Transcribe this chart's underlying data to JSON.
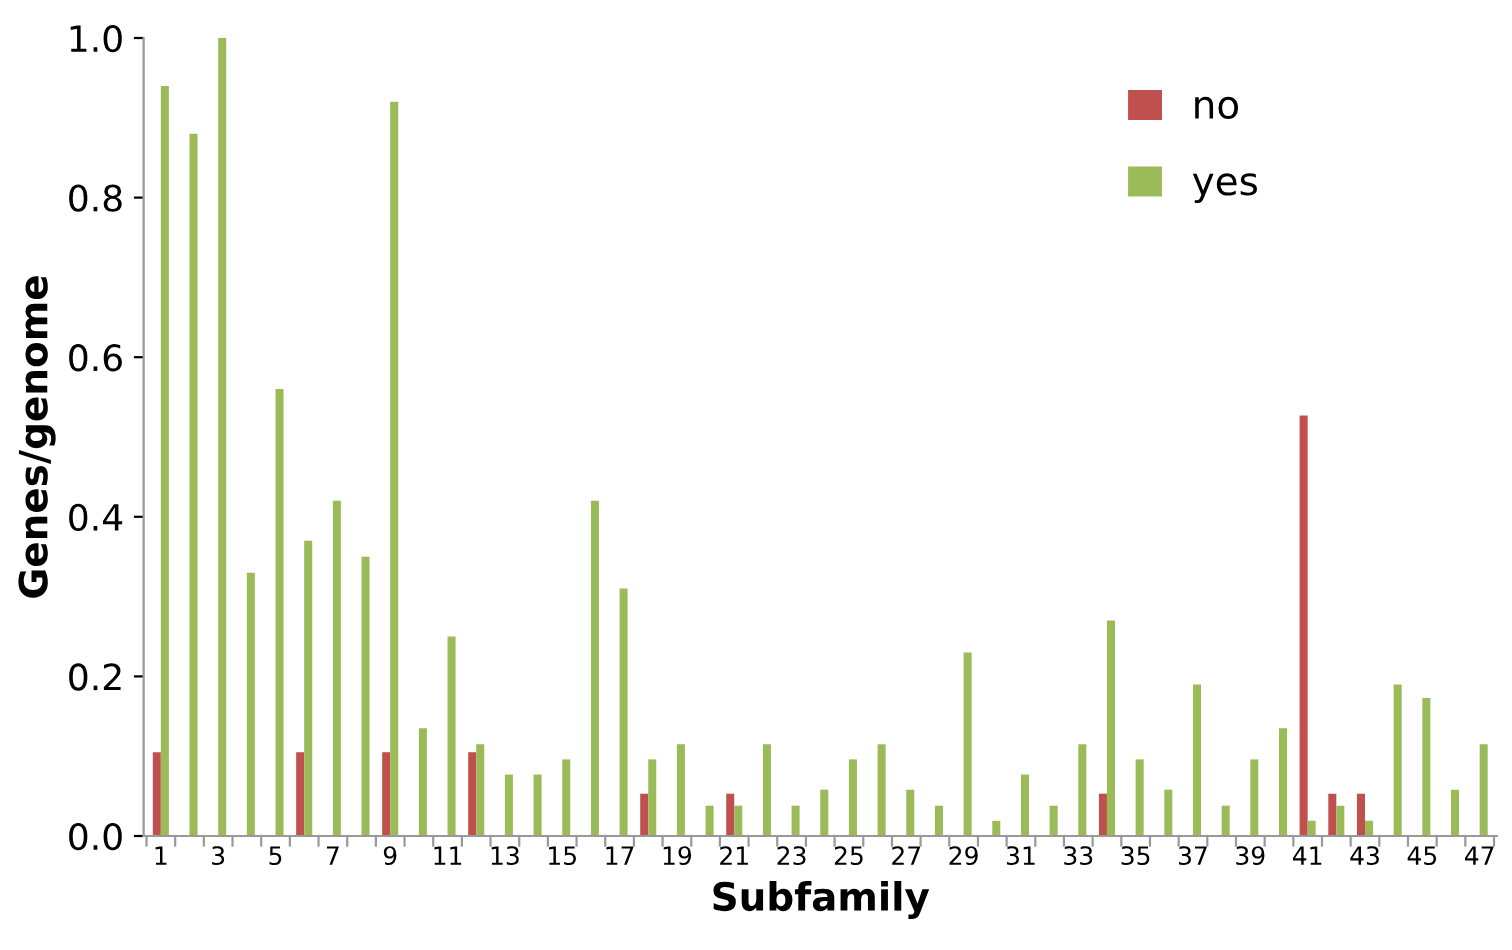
{
  "chart_data": {
    "type": "bar",
    "xlabel": "Subfamily",
    "ylabel": "Genes/genome",
    "categories": [
      "1",
      null,
      "3",
      null,
      "5",
      null,
      "7",
      null,
      "9",
      null,
      "11",
      null,
      "13",
      null,
      "15",
      null,
      "17",
      null,
      "19",
      null,
      "21",
      null,
      "23",
      null,
      "25",
      null,
      "27",
      null,
      "29",
      null,
      "31",
      null,
      "33",
      null,
      "35",
      null,
      "37",
      null,
      "39",
      null,
      "41",
      null,
      "43",
      null,
      "45",
      null,
      "47"
    ],
    "series": [
      {
        "name": "no",
        "color": "#c0504d",
        "values": [
          0.105,
          0,
          0,
          0,
          0,
          0.105,
          0,
          0,
          0.105,
          0,
          0,
          0.105,
          0,
          0,
          0,
          0,
          0,
          0.053,
          0,
          0,
          0.053,
          0,
          0,
          0,
          0,
          0,
          0,
          0,
          0,
          0,
          0,
          0,
          0,
          0.053,
          0,
          0,
          0,
          0,
          0,
          0,
          0.527,
          0.053,
          0.053,
          0,
          0,
          0,
          0
        ]
      },
      {
        "name": "yes",
        "color": "#9bbb59",
        "values": [
          0.94,
          0.88,
          1.0,
          0.33,
          0.56,
          0.37,
          0.42,
          0.35,
          0.92,
          0.135,
          0.25,
          0.115,
          0.077,
          0.077,
          0.096,
          0.42,
          0.31,
          0.096,
          0.115,
          0.038,
          0.038,
          0.115,
          0.038,
          0.058,
          0.096,
          0.115,
          0.058,
          0.038,
          0.23,
          0.019,
          0.077,
          0.038,
          0.115,
          0.27,
          0.096,
          0.058,
          0.19,
          0.038,
          0.096,
          0.135,
          0.019,
          0.038,
          0.019,
          0.19,
          0.173,
          0.058,
          0.115
        ]
      }
    ],
    "ylim": [
      0,
      1.0
    ],
    "yticks": [
      {
        "value": 0,
        "label": "0.0"
      },
      {
        "value": 0.2,
        "label": "0.2"
      },
      {
        "value": 0.4,
        "label": "0.4"
      },
      {
        "value": 0.6,
        "label": "0.6"
      },
      {
        "value": 0.8,
        "label": "0.8"
      },
      {
        "value": 1.0,
        "label": "1.0"
      }
    ],
    "grid": false,
    "legend": "top right"
  }
}
